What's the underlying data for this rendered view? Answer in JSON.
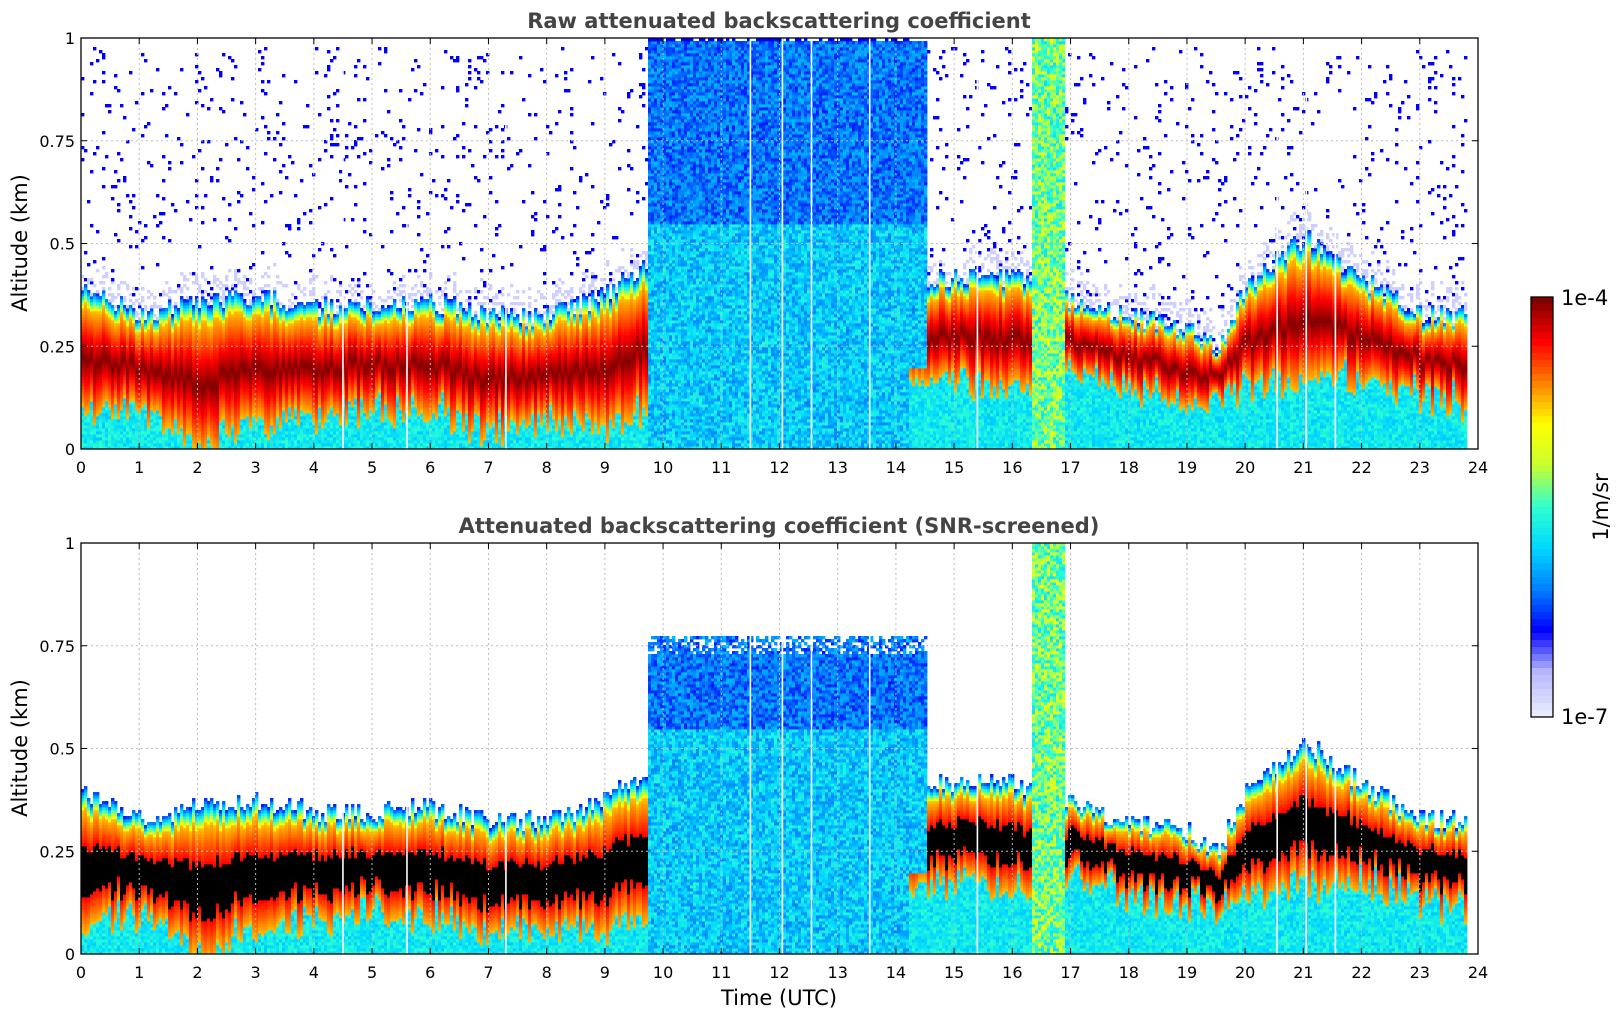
{
  "chart_data": [
    {
      "type": "heatmap",
      "title": "Raw attenuated backscattering coefficient",
      "xlabel": "",
      "ylabel": "Altitude (km)",
      "xlim": [
        0,
        24
      ],
      "ylim": [
        0,
        1
      ],
      "xticks": [
        "0",
        "1",
        "2",
        "3",
        "4",
        "5",
        "6",
        "7",
        "8",
        "9",
        "10",
        "11",
        "12",
        "13",
        "14",
        "15",
        "16",
        "17",
        "18",
        "19",
        "20",
        "21",
        "22",
        "23",
        "24"
      ],
      "yticks": [
        "0",
        "0.25",
        "0.5",
        "0.75",
        "1"
      ],
      "data_end_hour": 23.8,
      "layer_center_km": [
        [
          0,
          0.22
        ],
        [
          1,
          0.2
        ],
        [
          2,
          0.16
        ],
        [
          3,
          0.2
        ],
        [
          4,
          0.2
        ],
        [
          5,
          0.21
        ],
        [
          6,
          0.21
        ],
        [
          7,
          0.17
        ],
        [
          8,
          0.18
        ],
        [
          9,
          0.2
        ],
        [
          10,
          0.27
        ],
        [
          14.5,
          0.27
        ],
        [
          15,
          0.28
        ],
        [
          16,
          0.27
        ],
        [
          17,
          0.27
        ],
        [
          18,
          0.22
        ],
        [
          19,
          0.2
        ],
        [
          19.5,
          0.17
        ],
        [
          20,
          0.26
        ],
        [
          21,
          0.32
        ],
        [
          22,
          0.28
        ],
        [
          23,
          0.22
        ],
        [
          23.8,
          0.21
        ]
      ],
      "layer_top_km": [
        [
          0,
          0.4
        ],
        [
          1,
          0.33
        ],
        [
          2,
          0.36
        ],
        [
          3,
          0.38
        ],
        [
          4,
          0.35
        ],
        [
          5,
          0.35
        ],
        [
          6,
          0.36
        ],
        [
          7,
          0.33
        ],
        [
          8,
          0.33
        ],
        [
          9,
          0.38
        ],
        [
          10,
          0.48
        ],
        [
          14.5,
          0.42
        ],
        [
          15,
          0.42
        ],
        [
          16,
          0.42
        ],
        [
          17,
          0.37
        ],
        [
          18,
          0.33
        ],
        [
          19,
          0.3
        ],
        [
          19.5,
          0.25
        ],
        [
          20,
          0.4
        ],
        [
          21,
          0.52
        ],
        [
          22,
          0.42
        ],
        [
          23,
          0.33
        ],
        [
          23.8,
          0.33
        ]
      ],
      "cloud_intervals_utc": [
        [
          9.7,
          14.5
        ],
        [
          16.3,
          16.9
        ]
      ],
      "cloud_top_km": 1.0,
      "instrument_gaps_utc": [
        4.5,
        5.6,
        7.3,
        11.5,
        12.05,
        12.55,
        13.55,
        15.4,
        20.55,
        21.05,
        21.55
      ]
    },
    {
      "type": "heatmap",
      "title": "Attenuated backscattering coefficient (SNR-screened)",
      "xlabel": "Time (UTC)",
      "ylabel": "Altitude (km)",
      "xlim": [
        0,
        24
      ],
      "ylim": [
        0,
        1
      ],
      "xticks": [
        "0",
        "1",
        "2",
        "3",
        "4",
        "5",
        "6",
        "7",
        "8",
        "9",
        "10",
        "11",
        "12",
        "13",
        "14",
        "15",
        "16",
        "17",
        "18",
        "19",
        "20",
        "21",
        "22",
        "23",
        "24"
      ],
      "yticks": [
        "0",
        "0.25",
        "0.5",
        "0.75",
        "1"
      ],
      "data_end_hour": 23.8,
      "saturated_color": "#000000",
      "cloud_intervals_utc": [
        [
          9.7,
          14.5
        ],
        [
          16.3,
          16.9
        ]
      ],
      "cloud_top_km": 0.78
    }
  ],
  "colorbar": {
    "label": "1/m/sr",
    "max_label": "1e-4",
    "min_label": "1e-7",
    "stops": [
      "#e8e8ff",
      "#b8b8ff",
      "#0000ff",
      "#0080ff",
      "#00d8ff",
      "#30ffd0",
      "#c8ff30",
      "#ffff00",
      "#ff8000",
      "#ff0000",
      "#800000"
    ]
  }
}
